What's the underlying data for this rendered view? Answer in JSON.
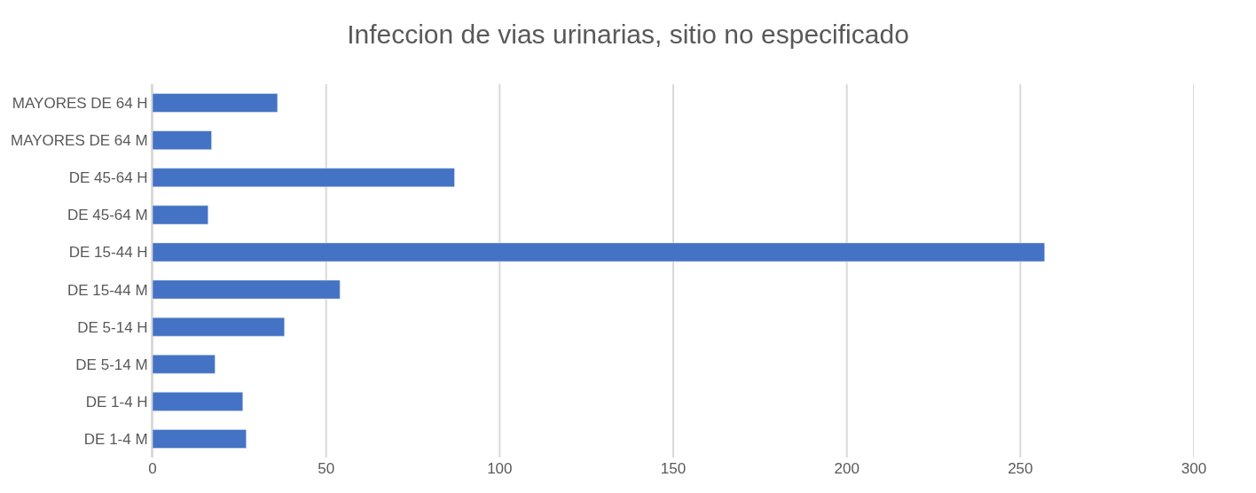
{
  "chart_data": {
    "type": "bar",
    "orientation": "horizontal",
    "title": "Infeccion de vias urinarias, sitio no especificado",
    "categories": [
      "MAYORES DE 64 H",
      "MAYORES DE 64 M",
      "DE 45-64 H",
      "DE 45-64 M",
      "DE 15-44 H",
      "DE 15-44 M",
      "DE 5-14 H",
      "DE 5-14 M",
      "DE 1-4 H",
      "DE 1-4 M"
    ],
    "values": [
      36,
      17,
      87,
      16,
      257,
      54,
      38,
      18,
      26,
      27
    ],
    "color": "#4472c4",
    "xlim": [
      0,
      300
    ],
    "xticks": [
      0,
      50,
      100,
      150,
      200,
      250,
      300
    ],
    "grid": "x"
  }
}
